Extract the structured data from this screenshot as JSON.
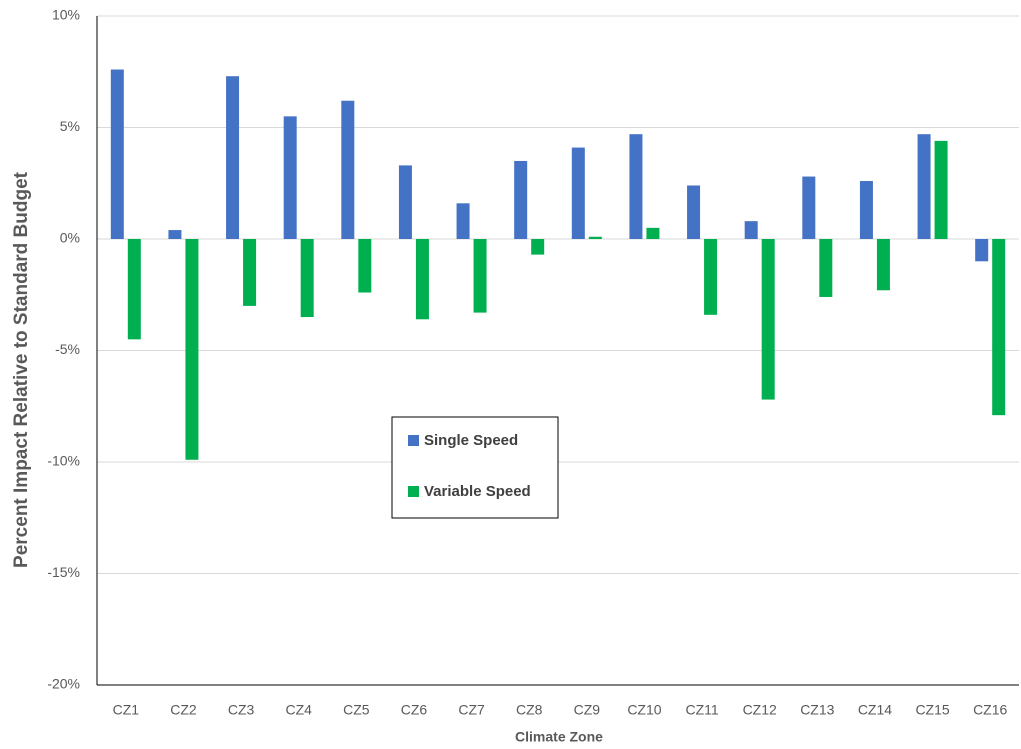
{
  "chart_data": {
    "type": "bar",
    "y_label": "Percent Impact Relative to Standard Budget",
    "x_label": "Climate Zone",
    "categories": [
      "CZ1",
      "CZ2",
      "CZ3",
      "CZ4",
      "CZ5",
      "CZ6",
      "CZ7",
      "CZ8",
      "CZ9",
      "CZ10",
      "CZ11",
      "CZ12",
      "CZ13",
      "CZ14",
      "CZ15",
      "CZ16"
    ],
    "series": [
      {
        "name": "Single Speed",
        "color": "#4472c4",
        "values": [
          7.6,
          0.4,
          7.3,
          5.5,
          6.2,
          3.3,
          1.6,
          3.5,
          4.1,
          4.7,
          2.4,
          0.8,
          2.8,
          2.6,
          4.7,
          -1.0
        ]
      },
      {
        "name": "Variable Speed",
        "color": "#00b050",
        "values": [
          -4.5,
          -9.9,
          -3.0,
          -3.5,
          -2.4,
          -3.6,
          -3.3,
          -0.7,
          0.1,
          0.5,
          -3.4,
          -7.2,
          -2.6,
          -2.3,
          4.4,
          -7.9
        ]
      }
    ],
    "ylim": [
      -20,
      10
    ],
    "yticks": [
      {
        "value": -20,
        "label": "-20%"
      },
      {
        "value": -15,
        "label": "-15%"
      },
      {
        "value": -10,
        "label": "-10%"
      },
      {
        "value": -5,
        "label": "-5%"
      },
      {
        "value": 0,
        "label": "0%"
      },
      {
        "value": 5,
        "label": "5%"
      },
      {
        "value": 10,
        "label": "10%"
      }
    ],
    "grid": true,
    "legend": "center"
  }
}
